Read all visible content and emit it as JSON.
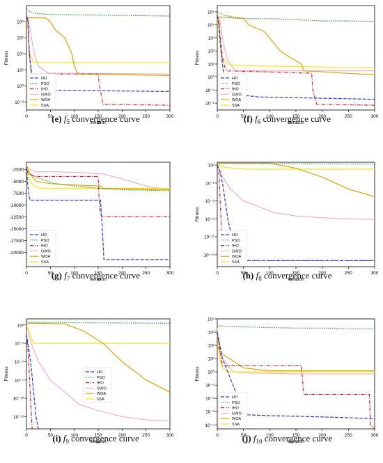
{
  "colors": {
    "HO": "#1f3fd6",
    "PSO": "#2e9a3c",
    "IHO": "#d62020",
    "GWO": "#f2a0b4",
    "WOA": "#e0a000",
    "SSA": "#f4ea2a"
  },
  "chart_data": [
    {
      "type": "line",
      "panel_label": "(e)",
      "func": "f",
      "func_sub": "5",
      "caption_rest": "convergence curve",
      "xlabel": "Iteration",
      "ylabel": "Fitness",
      "xlim": [
        0,
        300
      ],
      "yscale": "log",
      "ylim": [
        0.001,
        10000000000.0
      ],
      "xticks": [
        0,
        50,
        100,
        150,
        200,
        250,
        300
      ],
      "yticks": [
        {
          "v": 0.01,
          "t": "10⁻²"
        },
        {
          "v": 1,
          "t": "10⁰"
        },
        {
          "v": 100,
          "t": "10²"
        },
        {
          "v": 10000,
          "t": "10⁴"
        },
        {
          "v": 1000000.0,
          "t": "10⁶"
        },
        {
          "v": 100000000.0,
          "t": "10⁸"
        }
      ],
      "legend": "lower-left",
      "series": [
        {
          "name": "HO",
          "x": [
            0,
            3,
            6,
            10,
            15,
            20,
            300
          ],
          "y": [
            500000000.0,
            200000000.0,
            10000.0,
            100,
            1,
            0.3,
            0.2
          ]
        },
        {
          "name": "PSO",
          "x": [
            0,
            5,
            20,
            50,
            100,
            200,
            300
          ],
          "y": [
            5000000000.0,
            2000000000.0,
            1000000000.0,
            800000000.0,
            700000000.0,
            600000000.0,
            500000000.0
          ]
        },
        {
          "name": "IHO",
          "x": [
            0,
            3,
            6,
            10,
            150,
            152,
            160,
            300
          ],
          "y": [
            300000000.0,
            100000000.0,
            10000.0,
            30,
            30,
            2,
            0.005,
            0.004
          ]
        },
        {
          "name": "GWO",
          "x": [
            0,
            5,
            10,
            15,
            20,
            25,
            35,
            45,
            300
          ],
          "y": [
            500000000.0,
            100000000.0,
            1000000.0,
            30000.0,
            2000,
            300,
            100,
            40,
            30
          ]
        },
        {
          "name": "WOA",
          "x": [
            0,
            2,
            40,
            50,
            60,
            80,
            95,
            100,
            105,
            110,
            300
          ],
          "y": [
            100000000.0,
            300000000.0,
            300000000.0,
            100000000.0,
            10000000.0,
            1000000.0,
            10000.0,
            300,
            60,
            30,
            20
          ]
        },
        {
          "name": "SSA",
          "x": [
            0,
            3,
            6,
            10,
            15,
            20,
            300
          ],
          "y": [
            300000000.0,
            10000000.0,
            20000.0,
            3000,
            1000,
            800,
            800
          ]
        }
      ]
    },
    {
      "type": "line",
      "panel_label": "(f)",
      "func": "f",
      "func_sub": "6",
      "caption_rest": "convergence curve",
      "xlabel": "Iteration",
      "ylabel": "Fitness",
      "xlim": [
        0,
        300
      ],
      "yscale": "log",
      "ylim": [
        0.003,
        300000.0
      ],
      "xticks": [
        0,
        50,
        100,
        150,
        200,
        250,
        300
      ],
      "yticks": [
        {
          "v": 0.01,
          "t": "10⁻²"
        },
        {
          "v": 0.1,
          "t": "10⁻¹"
        },
        {
          "v": 1,
          "t": "10⁰"
        },
        {
          "v": 10,
          "t": "10¹"
        },
        {
          "v": 100,
          "t": "10²"
        },
        {
          "v": 1000,
          "t": "10³"
        },
        {
          "v": 10000,
          "t": "10⁴"
        },
        {
          "v": 100000,
          "t": "10⁵"
        }
      ],
      "legend": "lower-left",
      "series": [
        {
          "name": "HO",
          "x": [
            0,
            3,
            6,
            10,
            15,
            20,
            50,
            80,
            300
          ],
          "y": [
            50000,
            10000,
            300,
            10,
            0.1,
            0.05,
            0.04,
            0.03,
            0.02
          ]
        },
        {
          "name": "PSO",
          "x": [
            0,
            10,
            30,
            60,
            100,
            150,
            200,
            250,
            300
          ],
          "y": [
            100000,
            60000,
            40000,
            30000,
            30000,
            25000,
            20000,
            20000,
            18000
          ]
        },
        {
          "name": "IHO",
          "x": [
            0,
            3,
            6,
            10,
            15,
            20,
            180,
            182,
            190,
            300
          ],
          "y": [
            50000,
            20000,
            1000,
            30,
            5,
            3,
            2,
            0.1,
            0.008,
            0.007
          ]
        },
        {
          "name": "GWO",
          "x": [
            0,
            5,
            10,
            15,
            20,
            25,
            30,
            35,
            300
          ],
          "y": [
            50000,
            20000,
            1000,
            100,
            20,
            10,
            5,
            3,
            3
          ]
        },
        {
          "name": "WOA",
          "x": [
            0,
            2,
            50,
            60,
            90,
            100,
            120,
            140,
            160,
            165,
            300
          ],
          "y": [
            10000,
            40000,
            30000,
            10000,
            3000,
            1000,
            100,
            30,
            10,
            3,
            1.5
          ]
        },
        {
          "name": "SSA",
          "x": [
            0,
            3,
            6,
            10,
            20,
            30,
            300
          ],
          "y": [
            40000,
            5000,
            100,
            30,
            10,
            8,
            5
          ]
        }
      ]
    },
    {
      "type": "line",
      "panel_label": "(g)",
      "func": "f",
      "func_sub": "7",
      "caption_rest": "convergence curve",
      "xlabel": "Iteration",
      "ylabel": "",
      "xlim": [
        0,
        300
      ],
      "yscale": "linear",
      "ylim": [
        -23000,
        -1000
      ],
      "xticks": [
        0,
        50,
        100,
        150,
        200,
        250,
        300
      ],
      "yticks": [
        {
          "v": -2500,
          "t": "-2500"
        },
        {
          "v": -5000,
          "t": "-5000"
        },
        {
          "v": -7500,
          "t": "-7500"
        },
        {
          "v": -10000,
          "t": "-10000"
        },
        {
          "v": -12500,
          "t": "-12500"
        },
        {
          "v": -15000,
          "t": "-15000"
        },
        {
          "v": -17500,
          "t": "-17500"
        },
        {
          "v": -20000,
          "t": "-20000"
        }
      ],
      "legend": "lower-left",
      "series": [
        {
          "name": "HO",
          "x": [
            0,
            2,
            5,
            8,
            155,
            158,
            162,
            300
          ],
          "y": [
            -2000,
            -5000,
            -8000,
            -9000,
            -9000,
            -14000,
            -21500,
            -21500
          ]
        },
        {
          "name": "PSO",
          "x": [
            0,
            5,
            30,
            60,
            100,
            150,
            200,
            300
          ],
          "y": [
            -2500,
            -3500,
            -4500,
            -5500,
            -6000,
            -6500,
            -6800,
            -7000
          ]
        },
        {
          "name": "IHO",
          "x": [
            0,
            5,
            20,
            150,
            152,
            155,
            158,
            300
          ],
          "y": [
            -2500,
            -3500,
            -4000,
            -4000,
            -9000,
            -12000,
            -12500,
            -12500
          ]
        },
        {
          "name": "GWO",
          "x": [
            0,
            5,
            20,
            60,
            120,
            160,
            200,
            250,
            300
          ],
          "y": [
            -1500,
            -2500,
            -3000,
            -3000,
            -3200,
            -3500,
            -4500,
            -6000,
            -6800
          ]
        },
        {
          "name": "WOA",
          "x": [
            0,
            5,
            20,
            50,
            100,
            155,
            160,
            300
          ],
          "y": [
            -1500,
            -3000,
            -5000,
            -5500,
            -5800,
            -6000,
            -6500,
            -6800
          ]
        },
        {
          "name": "SSA",
          "x": [
            0,
            5,
            15,
            30,
            300
          ],
          "y": [
            -1500,
            -4500,
            -6000,
            -6500,
            -6500
          ]
        }
      ]
    },
    {
      "type": "line",
      "panel_label": "(h)",
      "func": "f",
      "func_sub": "8",
      "caption_rest": "convergence curve",
      "xlabel": "Iteration",
      "ylabel": "Fitness",
      "xlim": [
        0,
        300
      ],
      "yscale": "log",
      "ylim": [
        1e-16,
        30
      ],
      "xticks": [
        0,
        50,
        100,
        150,
        200,
        250,
        300
      ],
      "yticks": [
        {
          "v": 10,
          "t": "10¹"
        },
        {
          "v": 0.01,
          "t": "10⁻²"
        },
        {
          "v": 1e-05,
          "t": "10⁻⁵"
        },
        {
          "v": 1e-08,
          "t": "10⁻⁸"
        },
        {
          "v": 1e-11,
          "t": "10⁻¹¹"
        },
        {
          "v": 1e-14,
          "t": "10⁻¹⁴"
        }
      ],
      "legend": "lower-left",
      "series": [
        {
          "name": "HO",
          "x": [
            0,
            5,
            10,
            15,
            20,
            25,
            30,
            35,
            40,
            300
          ],
          "y": [
            10,
            1,
            0.01,
            1e-05,
            1e-08,
            1e-10,
            1e-12,
            1e-14,
            1e-15,
            1e-15
          ]
        },
        {
          "name": "PSO",
          "x": [
            0,
            300
          ],
          "y": [
            20,
            15
          ]
        },
        {
          "name": "IHO",
          "x": [
            0,
            3,
            5,
            8,
            10,
            300
          ],
          "y": [
            10,
            1,
            0.0001,
            1e-10,
            1e-15,
            1e-15
          ]
        },
        {
          "name": "GWO",
          "x": [
            0,
            10,
            25,
            50,
            80,
            110,
            150,
            200,
            250,
            300
          ],
          "y": [
            10,
            0.1,
            0.001,
            1e-05,
            1e-06,
            1e-07,
            3e-08,
            1.5e-08,
            1e-08,
            8e-09
          ]
        },
        {
          "name": "WOA",
          "x": [
            0,
            5,
            100,
            150,
            200,
            250,
            300
          ],
          "y": [
            10,
            20,
            20,
            3,
            0.1,
            0.001,
            5e-05
          ]
        },
        {
          "name": "SSA",
          "x": [
            0,
            10,
            30,
            60,
            300
          ],
          "y": [
            10,
            5,
            3,
            2,
            2
          ]
        }
      ]
    },
    {
      "type": "line",
      "panel_label": "(i)",
      "func": "f",
      "func_sub": "9",
      "caption_rest": "convergence curve",
      "xlabel": "Iteration",
      "ylabel": "Fitness",
      "xlim": [
        0,
        300
      ],
      "yscale": "log",
      "ylim": [
        1e-15,
        1000
      ],
      "xticks": [
        0,
        50,
        100,
        150,
        200,
        250,
        300
      ],
      "yticks": [
        {
          "v": 100,
          "t": "10²"
        },
        {
          "v": 0.1,
          "t": "10⁻¹"
        },
        {
          "v": 0.0001,
          "t": "10⁻⁴"
        },
        {
          "v": 1e-07,
          "t": "10⁻⁷"
        },
        {
          "v": 1e-10,
          "t": "10⁻¹⁰"
        },
        {
          "v": 1e-13,
          "t": "10⁻¹³"
        }
      ],
      "legend": "center",
      "series": [
        {
          "name": "HO",
          "x": [
            0,
            5,
            10,
            15,
            20,
            25
          ],
          "y": [
            3,
            0.01,
            1e-05,
            1e-09,
            1e-13,
            1e-15
          ]
        },
        {
          "name": "PSO",
          "x": [
            0,
            50,
            100,
            150,
            200,
            250,
            300
          ],
          "y": [
            300,
            250,
            230,
            220,
            210,
            200,
            200
          ]
        },
        {
          "name": "IHO",
          "x": [
            0,
            3,
            6,
            9,
            12
          ],
          "y": [
            3,
            0.01,
            1e-06,
            1e-11,
            1e-15
          ]
        },
        {
          "name": "GWO",
          "x": [
            0,
            10,
            25,
            50,
            80,
            110,
            150,
            200,
            250,
            300
          ],
          "y": [
            100,
            0.1,
            0.0001,
            1e-07,
            1e-09,
            1e-11,
            1e-12,
            1e-13,
            3e-14,
            2e-14
          ]
        },
        {
          "name": "WOA",
          "x": [
            0,
            5,
            80,
            120,
            160,
            200,
            250,
            300
          ],
          "y": [
            100,
            200,
            150,
            10,
            0.1,
            0.0001,
            1e-07,
            1e-09
          ]
        },
        {
          "name": "SSA",
          "x": [
            0,
            5,
            10,
            15,
            300
          ],
          "y": [
            100,
            10,
            1,
            0.1,
            0.1
          ]
        }
      ]
    },
    {
      "type": "line",
      "panel_label": "(j)",
      "func": "f",
      "func_sub": "10",
      "caption_rest": "convergence curve",
      "xlabel": "Iteration",
      "ylabel": "Fitness",
      "xlim": [
        0,
        300
      ],
      "yscale": "log",
      "ylim": [
        5e-05,
        10000
      ],
      "xticks": [
        0,
        50,
        100,
        150,
        200,
        250,
        300
      ],
      "yticks": [
        {
          "v": 0.0001,
          "t": "10⁻⁴"
        },
        {
          "v": 0.001,
          "t": "10⁻³"
        },
        {
          "v": 0.01,
          "t": "10⁻²"
        },
        {
          "v": 0.1,
          "t": "10⁻¹"
        },
        {
          "v": 1,
          "t": "10⁰"
        },
        {
          "v": 10,
          "t": "10¹"
        },
        {
          "v": 100,
          "t": "10²"
        },
        {
          "v": 1000,
          "t": "10³"
        },
        {
          "v": 10000,
          "t": "10⁴"
        }
      ],
      "legend": "lower-left",
      "series": [
        {
          "name": "HO",
          "x": [
            0,
            5,
            10,
            20,
            30,
            40,
            45,
            100,
            200,
            300
          ],
          "y": [
            1000,
            100,
            10,
            1,
            0.1,
            0.01,
            0.0006,
            0.0005,
            0.0004,
            0.0003
          ]
        },
        {
          "name": "PSO",
          "x": [
            0,
            50,
            100,
            150,
            200,
            250,
            300
          ],
          "y": [
            3000,
            2500,
            2200,
            2000,
            2000,
            1800,
            1800
          ]
        },
        {
          "name": "IHO",
          "x": [
            0,
            5,
            10,
            160,
            162,
            165,
            290,
            292,
            300
          ],
          "y": [
            1000,
            50,
            3,
            3,
            0.5,
            0.02,
            0.02,
            0.0001,
            5e-05
          ]
        },
        {
          "name": "GWO",
          "x": [
            0,
            10,
            30,
            60,
            100,
            150,
            300
          ],
          "y": [
            1000,
            10,
            1,
            0.8,
            0.8,
            0.7,
            0.7
          ]
        },
        {
          "name": "WOA",
          "x": [
            0,
            5,
            50,
            100,
            300
          ],
          "y": [
            100,
            30,
            2,
            1.2,
            1.2
          ]
        },
        {
          "name": "SSA",
          "x": [
            0,
            5,
            10,
            20,
            300
          ],
          "y": [
            2000,
            10,
            2,
            1,
            1
          ]
        }
      ]
    }
  ]
}
